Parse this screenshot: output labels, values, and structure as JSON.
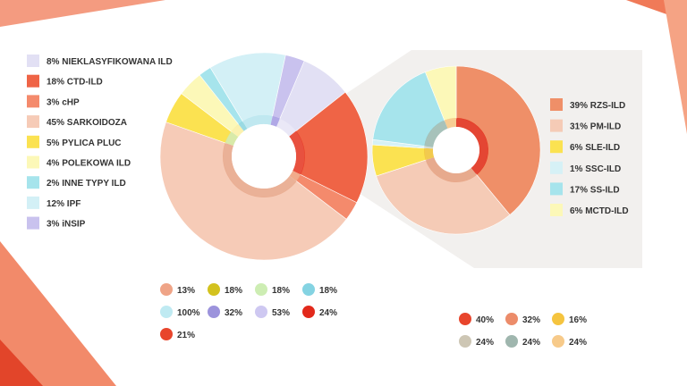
{
  "colors": {
    "accent": "#ef5b3a",
    "zoom_panel": "#f2f0ee"
  },
  "chart_data": [
    {
      "type": "pie",
      "name": "main-donut",
      "legend_position": "left",
      "slices": [
        {
          "label": "8% NIEKLASYFIKOWANA ILD",
          "value": 8,
          "color": "#e2e0f4"
        },
        {
          "label": "18% CTD-ILD",
          "value": 18,
          "color": "#ef6446"
        },
        {
          "label": "3% cHP",
          "value": 3,
          "color": "#f48a6c"
        },
        {
          "label": "45% SARKOIDOZA",
          "value": 45,
          "color": "#f6cbb7"
        },
        {
          "label": "5% PYLICA PLUC",
          "value": 5,
          "color": "#fbe251"
        },
        {
          "label": "4% POLEKOWA ILD",
          "value": 4,
          "color": "#fcf8b8"
        },
        {
          "label": "2% INNE TYPY ILD",
          "value": 2,
          "color": "#a6e4ec"
        },
        {
          "label": "12% IPF",
          "value": 12,
          "color": "#d3f0f6"
        },
        {
          "label": "3% iNSIP",
          "value": 3,
          "color": "#c9c2ee"
        }
      ],
      "inner_ring_colors": [
        "#e8e6f6",
        "#e63e2a",
        "#f0a27e",
        "#e8a98c",
        "#d4e8a0",
        "#fbf0a6",
        "#8fd6e0",
        "#b9e6ee",
        "#a79ee3"
      ],
      "summary_items": [
        {
          "label": "13%",
          "color": "#efa487"
        },
        {
          "label": "18%",
          "color": "#d3c21e"
        },
        {
          "label": "18%",
          "color": "#cdedb3"
        },
        {
          "label": "18%",
          "color": "#84d3e2"
        },
        {
          "label": "100%",
          "color": "#bfeaf2"
        },
        {
          "label": "32%",
          "color": "#9c93dc"
        },
        {
          "label": "53%",
          "color": "#cec8f1"
        },
        {
          "label": "24%",
          "color": "#e2291b"
        },
        {
          "label": "21%",
          "color": "#e8452c"
        }
      ]
    },
    {
      "type": "pie",
      "name": "ctd-ild-breakdown",
      "legend_position": "right",
      "slices": [
        {
          "label": "39% RZS-ILD",
          "value": 39,
          "color": "#ef8f68"
        },
        {
          "label": "31% PM-ILD",
          "value": 31,
          "color": "#f5cbb6"
        },
        {
          "label": "6% SLE-ILD",
          "value": 6,
          "color": "#fbe251"
        },
        {
          "label": "1% SSC-ILD",
          "value": 1,
          "color": "#d6f1f6"
        },
        {
          "label": "17% SS-ILD",
          "value": 17,
          "color": "#a6e4ec"
        },
        {
          "label": "6% MCTD-ILD",
          "value": 6,
          "color": "#fcf8b8"
        }
      ],
      "inner_ring_colors": [
        "#e2331e",
        "#e6a282",
        "#f2c53c",
        "#cfd8d0",
        "#9fbcb4",
        "#f7c988"
      ],
      "summary_items": [
        {
          "label": "40%",
          "color": "#e8452c"
        },
        {
          "label": "32%",
          "color": "#ec8c6a"
        },
        {
          "label": "16%",
          "color": "#f5c43f"
        },
        {
          "label": "24%",
          "color": "#cdc6b4"
        },
        {
          "label": "24%",
          "color": "#9fb6ae"
        },
        {
          "label": "24%",
          "color": "#f7ca8a"
        }
      ]
    }
  ]
}
